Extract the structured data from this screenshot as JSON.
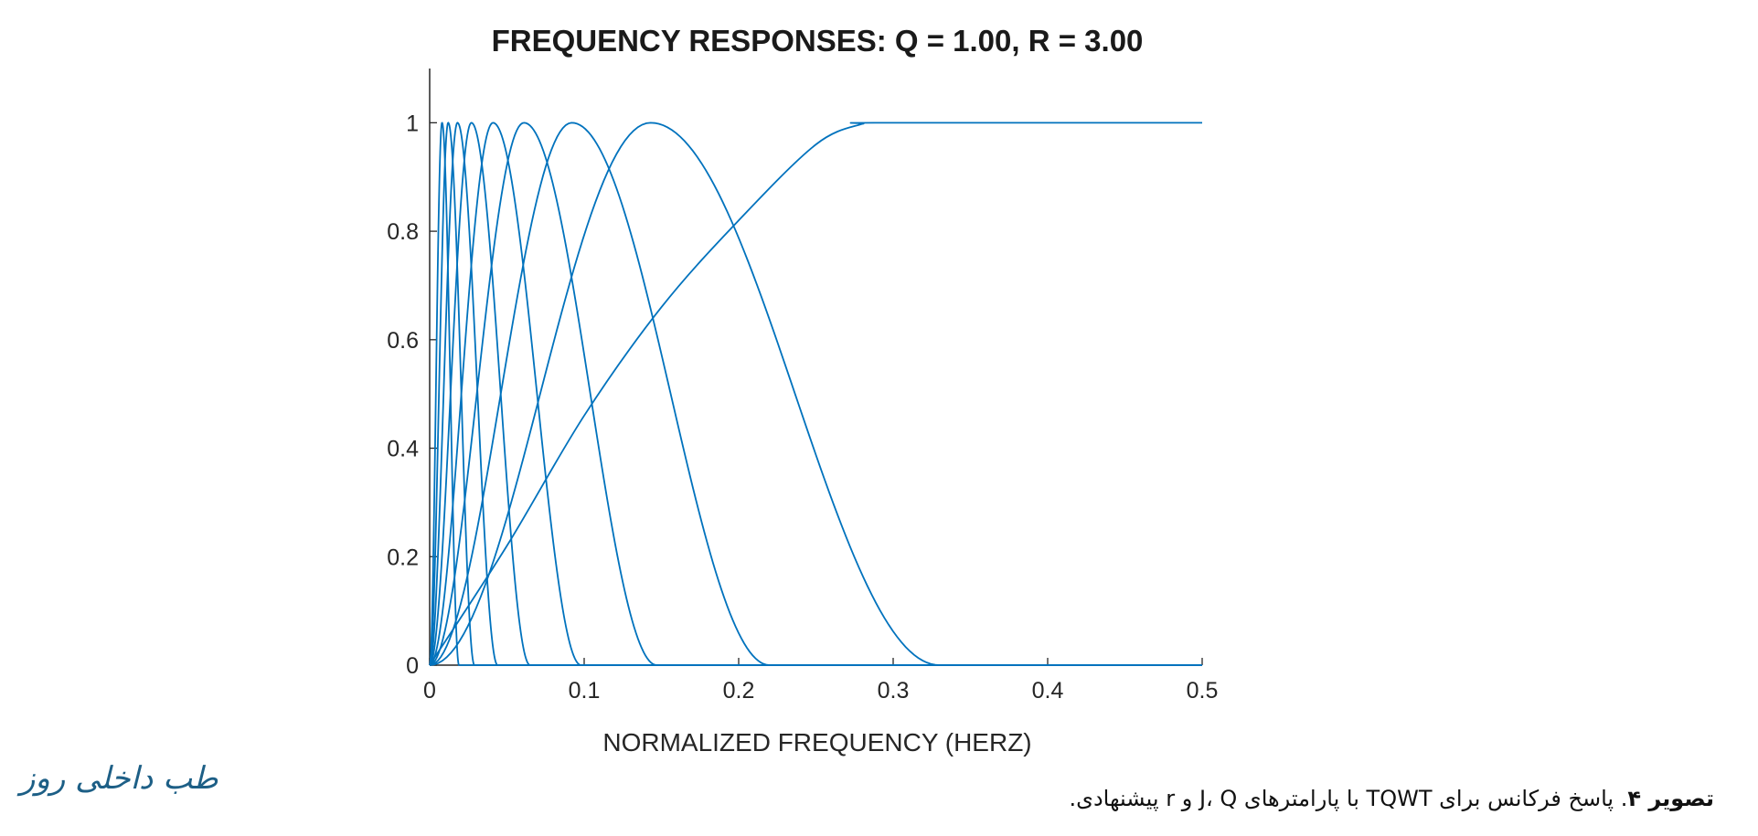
{
  "chart_data": {
    "type": "line",
    "title": "FREQUENCY RESPONSES: Q = 1.00, R = 3.00",
    "xlabel": "NORMALIZED FREQUENCY (HERZ)",
    "ylabel": "",
    "xlim": [
      0,
      0.5
    ],
    "ylim": [
      0,
      1.1
    ],
    "x_ticks": [
      "0",
      "0.1",
      "0.2",
      "0.3",
      "0.4",
      "0.5"
    ],
    "y_ticks": [
      "0",
      "0.2",
      "0.4",
      "0.6",
      "0.8",
      "1"
    ],
    "x_tick_values": [
      0,
      0.1,
      0.2,
      0.3,
      0.4,
      0.5
    ],
    "y_tick_values": [
      0,
      0.2,
      0.4,
      0.6,
      0.8,
      1
    ],
    "grid": false,
    "legend": "none",
    "line_color": "#0072bd",
    "series": [
      {
        "kind": "highpass",
        "x": [
          0,
          0.05,
          0.1,
          0.15,
          0.2,
          0.25,
          0.28,
          0.29,
          0.5
        ],
        "values": [
          0,
          0.22,
          0.46,
          0.66,
          0.82,
          0.96,
          0.998,
          1,
          1
        ]
      },
      {
        "kind": "bandpass",
        "x": [
          0,
          0.143,
          0.33
        ],
        "peak": 0.143,
        "values": [
          0,
          1,
          0
        ]
      },
      {
        "kind": "bandpass",
        "x": [
          0,
          0.092,
          0.22
        ],
        "peak": 0.092,
        "values": [
          0,
          1,
          0
        ]
      },
      {
        "kind": "bandpass",
        "x": [
          0,
          0.061,
          0.147
        ],
        "peak": 0.061,
        "values": [
          0,
          1,
          0
        ]
      },
      {
        "kind": "bandpass",
        "x": [
          0,
          0.041,
          0.098
        ],
        "peak": 0.041,
        "values": [
          0,
          1,
          0
        ]
      },
      {
        "kind": "bandpass",
        "x": [
          0,
          0.027,
          0.065
        ],
        "peak": 0.027,
        "values": [
          0,
          1,
          0
        ]
      },
      {
        "kind": "bandpass",
        "x": [
          0,
          0.018,
          0.044
        ],
        "peak": 0.018,
        "values": [
          0,
          1,
          0
        ]
      },
      {
        "kind": "bandpass",
        "x": [
          0,
          0.012,
          0.029
        ],
        "peak": 0.012,
        "values": [
          0,
          1,
          0
        ]
      },
      {
        "kind": "bandpass",
        "x": [
          0,
          0.008,
          0.019
        ],
        "peak": 0.008,
        "values": [
          0,
          1,
          0
        ]
      }
    ]
  },
  "caption": {
    "lead": "تصویر ۴",
    "text": ". پاسخ فرکانس برای TQWT با پارامترهای J، Q و r پیشنهادی."
  },
  "watermark": "طب داخلی روز"
}
